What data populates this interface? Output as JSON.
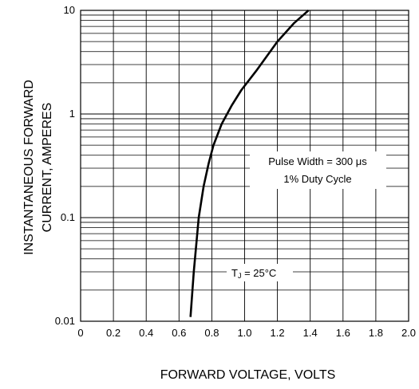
{
  "chart_data": {
    "type": "line",
    "title": "",
    "xlabel": "FORWARD VOLTAGE, VOLTS",
    "ylabel_lines": [
      "INSTANTANEOUS FORWARD",
      "CURRENT, AMPERES"
    ],
    "xlim": [
      0,
      2.0
    ],
    "ylim": [
      0.01,
      10
    ],
    "y_scale": "log",
    "grid": true,
    "x_tick_labels": [
      "0",
      "0.2",
      "0.4",
      "0.6",
      "0.8",
      "1.0",
      "1.2",
      "1.4",
      "1.6",
      "1.8",
      "2.0"
    ],
    "y_tick_labels": [
      "0.01",
      "0.1",
      "1",
      "10"
    ],
    "series": [
      {
        "x": [
          0.67,
          0.69,
          0.72,
          0.75,
          0.78,
          0.81,
          0.86,
          0.92,
          0.98,
          1.07,
          1.2,
          1.3,
          1.39
        ],
        "y": [
          0.011,
          0.03,
          0.1,
          0.2,
          0.33,
          0.5,
          0.8,
          1.2,
          1.7,
          2.6,
          5.0,
          7.5,
          10
        ]
      }
    ],
    "annotations": {
      "pulse_line1": "Pulse Width = 300  μs",
      "pulse_line2": "1% Duty Cycle",
      "temp_main": "T",
      "temp_sub": "J",
      "temp_rest": " = 25°C"
    }
  }
}
